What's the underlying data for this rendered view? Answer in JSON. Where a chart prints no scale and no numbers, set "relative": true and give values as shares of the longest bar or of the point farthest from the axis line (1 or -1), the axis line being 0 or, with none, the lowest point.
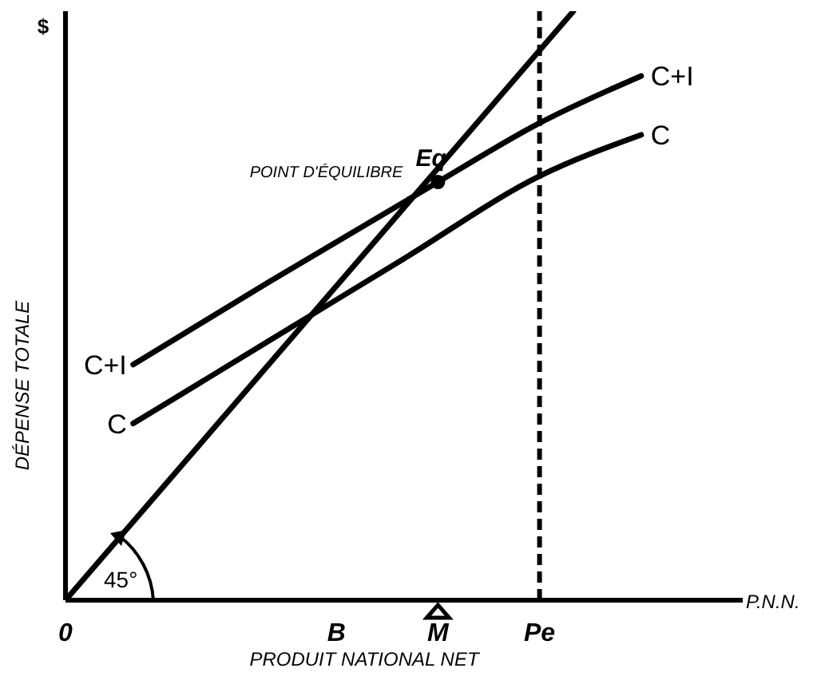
{
  "chart_data": {
    "type": "line",
    "relative": true,
    "xlabel": "PRODUIT NATIONAL NET",
    "ylabel": "DÉPENSE TOTALE",
    "marker": "none",
    "line_style": "solid",
    "categories": [
      "0",
      null,
      null,
      null,
      null,
      null,
      null,
      null,
      "B",
      null,
      null,
      "M",
      null,
      null,
      "Pe",
      null,
      null,
      null,
      null,
      null,
      null
    ],
    "series": [
      {
        "color": "#000000",
        "values": [
          0,
          null,
          null,
          null,
          null,
          null,
          null,
          null,
          null,
          null,
          null,
          null,
          null,
          null,
          null,
          1,
          null,
          null,
          null,
          null,
          null
        ]
      },
      {
        "name": "C+I",
        "color": "#000000",
        "values": [
          null,
          null,
          0.4,
          null,
          null,
          null,
          0.54,
          null,
          null,
          null,
          null,
          0.71,
          null,
          null,
          0.81,
          null,
          null,
          0.89,
          null,
          null,
          null
        ]
      },
      {
        "name": "C",
        "color": "#000000",
        "values": [
          null,
          null,
          0.3,
          null,
          null,
          null,
          0.44,
          null,
          null,
          null,
          0.58,
          null,
          null,
          null,
          0.72,
          null,
          null,
          0.79,
          null,
          null,
          null
        ]
      },
      {
        "type": "scatter",
        "marker": "circle",
        "color": "#000000",
        "values": [
          null,
          null,
          null,
          null,
          null,
          null,
          null,
          null,
          null,
          null,
          null,
          0.71,
          null,
          null,
          null,
          null,
          null,
          null,
          null,
          null,
          null
        ]
      }
    ],
    "ref_lines": [
      {
        "axis": "x",
        "value": "Pe",
        "line_style": "dashed",
        "color": "#000000"
      }
    ],
    "annotations": [
      {
        "text": "Eq",
        "x": "M",
        "y": 0.71
      },
      {
        "text": "POINT D'ÉQUILIBRE",
        "x": "M",
        "y": 0.71
      },
      "45°",
      "$",
      "P.N.N."
    ]
  }
}
